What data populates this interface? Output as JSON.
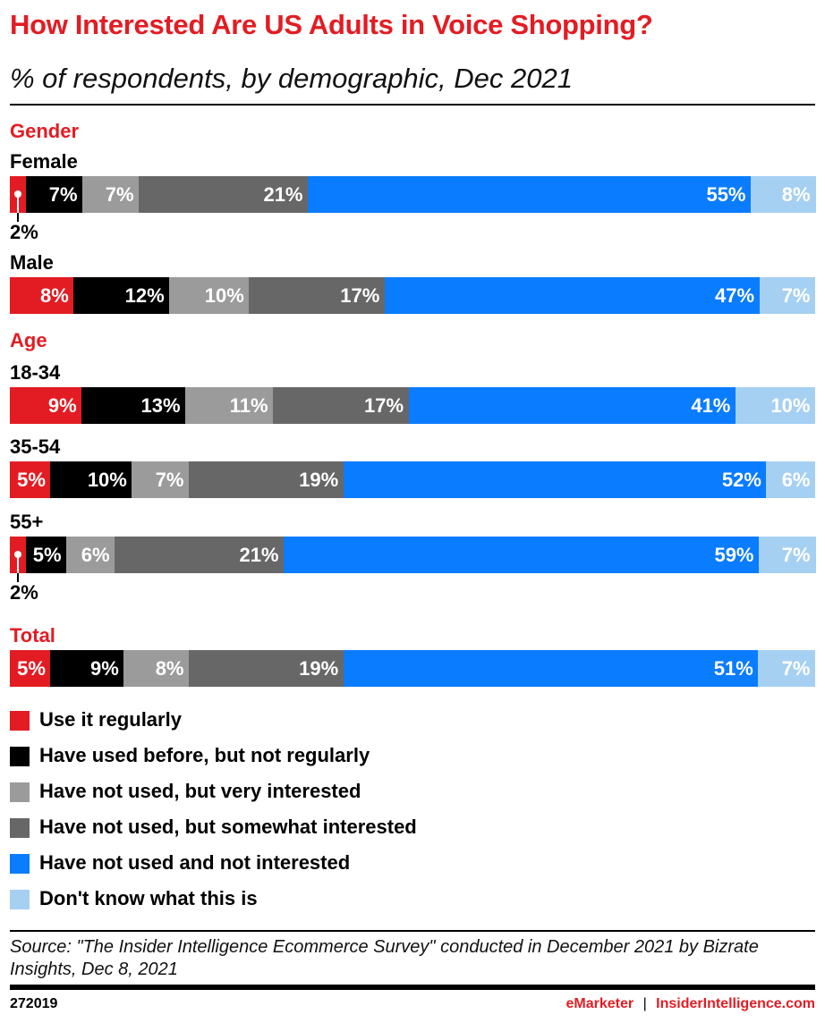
{
  "header": {
    "title": "How Interested Are US Adults in Voice Shopping?",
    "subtitle": "% of respondents, by demographic, Dec 2021"
  },
  "chart_data": {
    "type": "bar",
    "stacked": true,
    "orientation": "horizontal",
    "legend_placement": "bottom",
    "series_names": [
      "Use it regularly",
      "Have used before, but not regularly",
      "Have not used, but very interested",
      "Have not used, but somewhat interested",
      "Have not used and not interested",
      "Don't know what this is"
    ],
    "colors": [
      "#e31c23",
      "#000000",
      "#9b9b9b",
      "#676767",
      "#0a7cff",
      "#a6d0f2"
    ],
    "groups": [
      {
        "name": "Gender",
        "rows": [
          {
            "label": "Female",
            "values": [
              2,
              7,
              7,
              21,
              55,
              8
            ],
            "labels": [
              "2%",
              "7%",
              "7%",
              "21%",
              "55%",
              "8%"
            ]
          },
          {
            "label": "Male",
            "values": [
              8,
              12,
              10,
              17,
              47,
              7
            ],
            "labels": [
              "8%",
              "12%",
              "10%",
              "17%",
              "47%",
              "7%"
            ]
          }
        ]
      },
      {
        "name": "Age",
        "rows": [
          {
            "label": "18-34",
            "values": [
              9,
              13,
              11,
              17,
              41,
              10
            ],
            "labels": [
              "9%",
              "13%",
              "11%",
              "17%",
              "41%",
              "10%"
            ]
          },
          {
            "label": "35-54",
            "values": [
              5,
              10,
              7,
              19,
              52,
              6
            ],
            "labels": [
              "5%",
              "10%",
              "7%",
              "19%",
              "52%",
              "6%"
            ]
          },
          {
            "label": "55+",
            "values": [
              2,
              5,
              6,
              21,
              59,
              7
            ],
            "labels": [
              "2%",
              "5%",
              "6%",
              "21%",
              "59%",
              "7%"
            ]
          }
        ]
      },
      {
        "name": "Total",
        "rows": [
          {
            "label": "",
            "values": [
              5,
              9,
              8,
              19,
              51,
              7
            ],
            "labels": [
              "5%",
              "9%",
              "8%",
              "19%",
              "51%",
              "7%"
            ]
          }
        ]
      }
    ]
  },
  "footer": {
    "source": "Source: \"The Insider Intelligence Ecommerce Survey\" conducted in December 2021 by Bizrate Insights, Dec 8, 2021",
    "id": "272019",
    "brand_left": "eMarketer",
    "separator": "|",
    "brand_right": "InsiderIntelligence.com"
  }
}
